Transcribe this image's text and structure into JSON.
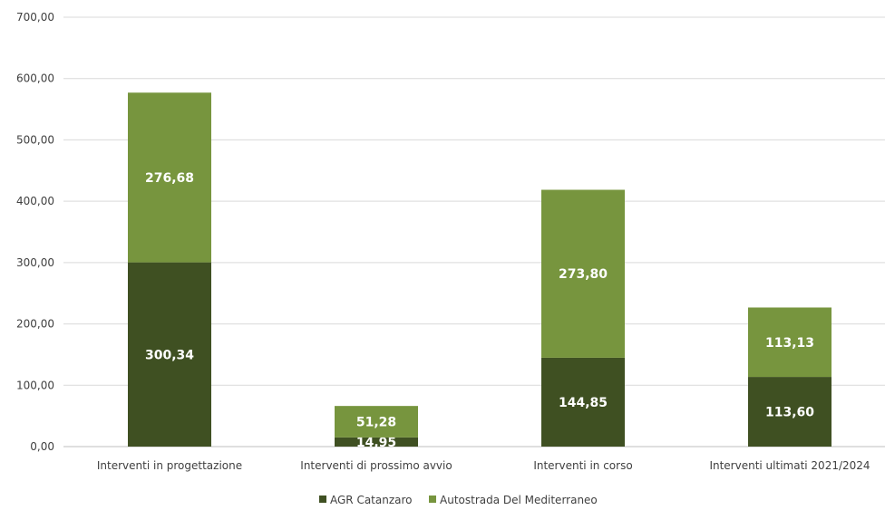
{
  "chart_data": {
    "type": "bar",
    "stacked": true,
    "categories": [
      "Interventi in progettazione",
      "Interventi di prossimo avvio",
      "Interventi in corso",
      "Interventi ultimati 2021/2024"
    ],
    "series": [
      {
        "name": "AGR Catanzaro",
        "values": [
          300.34,
          14.95,
          144.85,
          113.6
        ],
        "labels": [
          "300,34",
          "14,95",
          "144,85",
          "113,60"
        ],
        "color": "#3f5022"
      },
      {
        "name": "Autostrada Del Mediterraneo",
        "values": [
          276.68,
          51.28,
          273.8,
          113.13
        ],
        "labels": [
          "276,68",
          "51,28",
          "273,80",
          "113,13"
        ],
        "color": "#77953e"
      }
    ],
    "ylim": [
      0,
      700
    ],
    "yticks": [
      0,
      100,
      200,
      300,
      400,
      500,
      600,
      700
    ],
    "ytick_labels": [
      "0,00",
      "100,00",
      "200,00",
      "300,00",
      "400,00",
      "500,00",
      "600,00",
      "700,00"
    ],
    "grid": true,
    "legend_position": "bottom",
    "gridline_color": "#d9d9d9",
    "axis_color": "#bfbfbf"
  }
}
